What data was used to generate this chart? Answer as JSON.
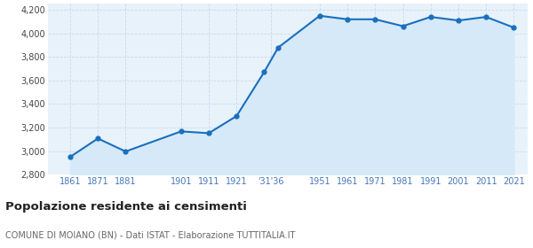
{
  "years": [
    1861,
    1871,
    1881,
    1901,
    1911,
    1921,
    1931,
    1936,
    1951,
    1961,
    1971,
    1981,
    1991,
    2001,
    2011,
    2021
  ],
  "population": [
    2952,
    3108,
    2998,
    3168,
    3153,
    3298,
    3672,
    3878,
    4148,
    4118,
    4118,
    4060,
    4138,
    4108,
    4138,
    4048
  ],
  "line_color": "#1a6fbe",
  "fill_color": "#d6e9f8",
  "marker_color": "#1a6fbe",
  "bg_color": "#ffffff",
  "plot_bg_color": "#e8f2fb",
  "grid_color": "#c8daea",
  "ylim": [
    2800,
    4250
  ],
  "yticks": [
    2800,
    3000,
    3200,
    3400,
    3600,
    3800,
    4000,
    4200
  ],
  "title": "Popolazione residente ai censimenti",
  "subtitle": "COMUNE DI MOIANO (BN) - Dati ISTAT - Elaborazione TUTTITALIA.IT",
  "title_fontsize": 9.5,
  "subtitle_fontsize": 7,
  "tick_color": "#4477bb",
  "tick_fontsize": 7
}
